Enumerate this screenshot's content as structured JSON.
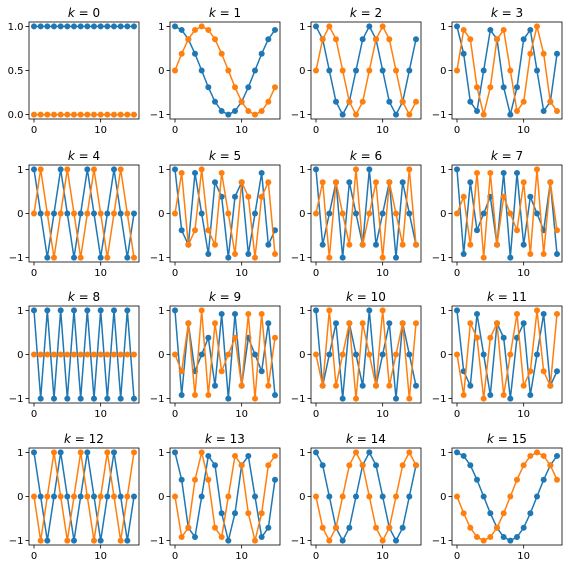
{
  "chart_data": {
    "type": "line",
    "layout": "4x4 grid of subplots",
    "n_points": 16,
    "x": [
      0,
      1,
      2,
      3,
      4,
      5,
      6,
      7,
      8,
      9,
      10,
      11,
      12,
      13,
      14,
      15
    ],
    "series_colors": [
      "#1f77b4",
      "#ff7f0e"
    ],
    "markers": "filled circles",
    "grid": false,
    "subplots": [
      {
        "title_var": "k",
        "title_value": "0",
        "xticks": [
          "0",
          "10"
        ],
        "ylim": [
          -0.05,
          1.05
        ],
        "yticks": [
          {
            "value": 0,
            "label": "0.0"
          },
          {
            "value": 0.5,
            "label": "0.5"
          },
          {
            "value": 1,
            "label": "1.0"
          }
        ],
        "series": [
          {
            "values": [
              1,
              1,
              1,
              1,
              1,
              1,
              1,
              1,
              1,
              1,
              1,
              1,
              1,
              1,
              1,
              1
            ]
          },
          {
            "values": [
              0,
              0,
              0,
              0,
              0,
              0,
              0,
              0,
              0,
              0,
              0,
              0,
              0,
              0,
              0,
              0
            ]
          }
        ]
      },
      {
        "title_var": "k",
        "title_value": "1",
        "xticks": [
          "0",
          "10"
        ],
        "ylim": [
          -1.1,
          1.1
        ],
        "yticks": [
          {
            "value": -1,
            "label": "−1"
          },
          {
            "value": 0,
            "label": "0"
          },
          {
            "value": 1,
            "label": "1"
          }
        ],
        "series": [
          {
            "values": [
              1,
              0.92,
              0.71,
              0.38,
              0,
              -0.38,
              -0.71,
              -0.92,
              -1,
              -0.92,
              -0.71,
              -0.38,
              0,
              0.38,
              0.71,
              0.92
            ]
          },
          {
            "values": [
              0,
              0.38,
              0.71,
              0.92,
              1,
              0.92,
              0.71,
              0.38,
              0,
              -0.38,
              -0.71,
              -0.92,
              -1,
              -0.92,
              -0.71,
              -0.38
            ]
          }
        ]
      },
      {
        "title_var": "k",
        "title_value": "2",
        "xticks": [
          "0",
          "10"
        ],
        "ylim": [
          -1.1,
          1.1
        ],
        "yticks": [
          {
            "value": -1,
            "label": "−1"
          },
          {
            "value": 0,
            "label": "0"
          },
          {
            "value": 1,
            "label": "1"
          }
        ],
        "series": [
          {
            "values": [
              1,
              0.71,
              0,
              -0.71,
              -1,
              -0.71,
              0,
              0.71,
              1,
              0.71,
              0,
              -0.71,
              -1,
              -0.71,
              0,
              0.71
            ]
          },
          {
            "values": [
              0,
              0.71,
              1,
              0.71,
              0,
              -0.71,
              -1,
              -0.71,
              0,
              0.71,
              1,
              0.71,
              0,
              -0.71,
              -1,
              -0.71
            ]
          }
        ]
      },
      {
        "title_var": "k",
        "title_value": "3",
        "xticks": [
          "0",
          "10"
        ],
        "ylim": [
          -1.1,
          1.1
        ],
        "yticks": [
          {
            "value": -1,
            "label": "−1"
          },
          {
            "value": 0,
            "label": "0"
          },
          {
            "value": 1,
            "label": "1"
          }
        ],
        "series": [
          {
            "values": [
              1,
              0.38,
              -0.71,
              -0.92,
              0,
              0.92,
              0.71,
              -0.38,
              -1,
              -0.38,
              0.71,
              0.92,
              0,
              -0.92,
              -0.71,
              0.38
            ]
          },
          {
            "values": [
              0,
              0.92,
              0.71,
              -0.38,
              -1,
              -0.38,
              0.71,
              0.92,
              0,
              -0.92,
              -0.71,
              0.38,
              1,
              0.38,
              -0.71,
              -0.92
            ]
          }
        ]
      },
      {
        "title_var": "k",
        "title_value": "4",
        "xticks": [
          "0",
          "10"
        ],
        "ylim": [
          -1.1,
          1.1
        ],
        "yticks": [
          {
            "value": -1,
            "label": "−1"
          },
          {
            "value": 0,
            "label": "0"
          },
          {
            "value": 1,
            "label": "1"
          }
        ],
        "series": [
          {
            "values": [
              1,
              0,
              -1,
              0,
              1,
              0,
              -1,
              0,
              1,
              0,
              -1,
              0,
              1,
              0,
              -1,
              0
            ]
          },
          {
            "values": [
              0,
              1,
              0,
              -1,
              0,
              1,
              0,
              -1,
              0,
              1,
              0,
              -1,
              0,
              1,
              0,
              -1
            ]
          }
        ]
      },
      {
        "title_var": "k",
        "title_value": "5",
        "xticks": [
          "0",
          "10"
        ],
        "ylim": [
          -1.1,
          1.1
        ],
        "yticks": [
          {
            "value": -1,
            "label": "−1"
          },
          {
            "value": 0,
            "label": "0"
          },
          {
            "value": 1,
            "label": "1"
          }
        ],
        "series": [
          {
            "values": [
              1,
              -0.38,
              -0.71,
              0.92,
              0,
              -0.92,
              0.71,
              0.38,
              -1,
              0.38,
              0.71,
              -0.92,
              0,
              0.92,
              -0.71,
              -0.38
            ]
          },
          {
            "values": [
              0,
              0.92,
              -0.71,
              -0.38,
              1,
              -0.38,
              -0.71,
              0.92,
              0,
              -0.92,
              0.71,
              0.38,
              -1,
              0.38,
              0.71,
              -0.92
            ]
          }
        ]
      },
      {
        "title_var": "k",
        "title_value": "6",
        "xticks": [
          "0",
          "10"
        ],
        "ylim": [
          -1.1,
          1.1
        ],
        "yticks": [
          {
            "value": -1,
            "label": "−1"
          },
          {
            "value": 0,
            "label": "0"
          },
          {
            "value": 1,
            "label": "1"
          }
        ],
        "series": [
          {
            "values": [
              1,
              -0.71,
              0,
              0.71,
              -1,
              0.71,
              0,
              -0.71,
              1,
              -0.71,
              0,
              0.71,
              -1,
              0.71,
              0,
              -0.71
            ]
          },
          {
            "values": [
              0,
              0.71,
              -1,
              0.71,
              0,
              -0.71,
              1,
              -0.71,
              0,
              0.71,
              -1,
              0.71,
              0,
              -0.71,
              1,
              -0.71
            ]
          }
        ]
      },
      {
        "title_var": "k",
        "title_value": "7",
        "xticks": [
          "0",
          "10"
        ],
        "ylim": [
          -1.1,
          1.1
        ],
        "yticks": [
          {
            "value": -1,
            "label": "−1"
          },
          {
            "value": 0,
            "label": "0"
          },
          {
            "value": 1,
            "label": "1"
          }
        ],
        "series": [
          {
            "values": [
              1,
              -0.92,
              0.71,
              -0.38,
              0,
              0.38,
              -0.71,
              0.92,
              -1,
              0.92,
              -0.71,
              0.38,
              0,
              -0.38,
              0.71,
              -0.92
            ]
          },
          {
            "values": [
              0,
              0.38,
              -0.71,
              0.92,
              -1,
              0.92,
              -0.71,
              0.38,
              0,
              -0.38,
              0.71,
              -0.92,
              1,
              -0.92,
              0.71,
              -0.38
            ]
          }
        ]
      },
      {
        "title_var": "k",
        "title_value": "8",
        "xticks": [
          "0",
          "10"
        ],
        "ylim": [
          -1.1,
          1.1
        ],
        "yticks": [
          {
            "value": -1,
            "label": "−1"
          },
          {
            "value": 0,
            "label": "0"
          },
          {
            "value": 1,
            "label": "1"
          }
        ],
        "series": [
          {
            "values": [
              1,
              -1,
              1,
              -1,
              1,
              -1,
              1,
              -1,
              1,
              -1,
              1,
              -1,
              1,
              -1,
              1,
              -1
            ]
          },
          {
            "values": [
              0,
              0,
              0,
              0,
              0,
              0,
              0,
              0,
              0,
              0,
              0,
              0,
              0,
              0,
              0,
              0
            ]
          }
        ]
      },
      {
        "title_var": "k",
        "title_value": "9",
        "xticks": [
          "0",
          "10"
        ],
        "ylim": [
          -1.1,
          1.1
        ],
        "yticks": [
          {
            "value": -1,
            "label": "−1"
          },
          {
            "value": 0,
            "label": "0"
          },
          {
            "value": 1,
            "label": "1"
          }
        ],
        "series": [
          {
            "values": [
              1,
              -0.92,
              0.71,
              -0.38,
              0,
              0.38,
              -0.71,
              0.92,
              -1,
              0.92,
              -0.71,
              0.38,
              0,
              -0.38,
              0.71,
              -0.92
            ]
          },
          {
            "values": [
              0,
              -0.38,
              0.71,
              -0.92,
              1,
              -0.92,
              0.71,
              -0.38,
              0,
              0.38,
              -0.71,
              0.92,
              -1,
              0.92,
              -0.71,
              0.38
            ]
          }
        ]
      },
      {
        "title_var": "k",
        "title_value": "10",
        "xticks": [
          "0",
          "10"
        ],
        "ylim": [
          -1.1,
          1.1
        ],
        "yticks": [
          {
            "value": -1,
            "label": "−1"
          },
          {
            "value": 0,
            "label": "0"
          },
          {
            "value": 1,
            "label": "1"
          }
        ],
        "series": [
          {
            "values": [
              1,
              -0.71,
              0,
              0.71,
              -1,
              0.71,
              0,
              -0.71,
              1,
              -0.71,
              0,
              0.71,
              -1,
              0.71,
              0,
              -0.71
            ]
          },
          {
            "values": [
              0,
              -0.71,
              1,
              -0.71,
              0,
              0.71,
              -1,
              0.71,
              0,
              -0.71,
              1,
              -0.71,
              0,
              0.71,
              -1,
              0.71
            ]
          }
        ]
      },
      {
        "title_var": "k",
        "title_value": "11",
        "xticks": [
          "0",
          "10"
        ],
        "ylim": [
          -1.1,
          1.1
        ],
        "yticks": [
          {
            "value": -1,
            "label": "−1"
          },
          {
            "value": 0,
            "label": "0"
          },
          {
            "value": 1,
            "label": "1"
          }
        ],
        "series": [
          {
            "values": [
              1,
              -0.38,
              -0.71,
              0.92,
              0,
              -0.92,
              0.71,
              0.38,
              -1,
              0.38,
              0.71,
              -0.92,
              0,
              0.92,
              -0.71,
              -0.38
            ]
          },
          {
            "values": [
              0,
              -0.92,
              0.71,
              0.38,
              -1,
              0.38,
              0.71,
              -0.92,
              0,
              0.92,
              -0.71,
              -0.38,
              1,
              -0.38,
              -0.71,
              0.92
            ]
          }
        ]
      },
      {
        "title_var": "k",
        "title_value": "12",
        "xticks": [
          "0",
          "10"
        ],
        "ylim": [
          -1.1,
          1.1
        ],
        "yticks": [
          {
            "value": -1,
            "label": "−1"
          },
          {
            "value": 0,
            "label": "0"
          },
          {
            "value": 1,
            "label": "1"
          }
        ],
        "series": [
          {
            "values": [
              1,
              0,
              -1,
              0,
              1,
              0,
              -1,
              0,
              1,
              0,
              -1,
              0,
              1,
              0,
              -1,
              0
            ]
          },
          {
            "values": [
              0,
              -1,
              0,
              1,
              0,
              -1,
              0,
              1,
              0,
              -1,
              0,
              1,
              0,
              -1,
              0,
              1
            ]
          }
        ]
      },
      {
        "title_var": "k",
        "title_value": "13",
        "xticks": [
          "0",
          "10"
        ],
        "ylim": [
          -1.1,
          1.1
        ],
        "yticks": [
          {
            "value": -1,
            "label": "−1"
          },
          {
            "value": 0,
            "label": "0"
          },
          {
            "value": 1,
            "label": "1"
          }
        ],
        "series": [
          {
            "values": [
              1,
              0.38,
              -0.71,
              -0.92,
              0,
              0.92,
              0.71,
              -0.38,
              -1,
              -0.38,
              0.71,
              0.92,
              0,
              -0.92,
              -0.71,
              0.38
            ]
          },
          {
            "values": [
              0,
              -0.92,
              -0.71,
              0.38,
              1,
              0.38,
              -0.71,
              -0.92,
              0,
              0.92,
              0.71,
              -0.38,
              -1,
              -0.38,
              0.71,
              0.92
            ]
          }
        ]
      },
      {
        "title_var": "k",
        "title_value": "14",
        "xticks": [
          "0",
          "10"
        ],
        "ylim": [
          -1.1,
          1.1
        ],
        "yticks": [
          {
            "value": -1,
            "label": "−1"
          },
          {
            "value": 0,
            "label": "0"
          },
          {
            "value": 1,
            "label": "1"
          }
        ],
        "series": [
          {
            "values": [
              1,
              0.71,
              0,
              -0.71,
              -1,
              -0.71,
              0,
              0.71,
              1,
              0.71,
              0,
              -0.71,
              -1,
              -0.71,
              0,
              0.71
            ]
          },
          {
            "values": [
              0,
              -0.71,
              -1,
              -0.71,
              0,
              0.71,
              1,
              0.71,
              0,
              -0.71,
              -1,
              -0.71,
              0,
              0.71,
              1,
              0.71
            ]
          }
        ]
      },
      {
        "title_var": "k",
        "title_value": "15",
        "xticks": [
          "0",
          "10"
        ],
        "ylim": [
          -1.1,
          1.1
        ],
        "yticks": [
          {
            "value": -1,
            "label": "−1"
          },
          {
            "value": 0,
            "label": "0"
          },
          {
            "value": 1,
            "label": "1"
          }
        ],
        "series": [
          {
            "values": [
              1,
              0.92,
              0.71,
              0.38,
              0,
              -0.38,
              -0.71,
              -0.92,
              -1,
              -0.92,
              -0.71,
              -0.38,
              0,
              0.38,
              0.71,
              0.92
            ]
          },
          {
            "values": [
              0,
              -0.38,
              -0.71,
              -0.92,
              -1,
              -0.92,
              -0.71,
              -0.38,
              0,
              0.38,
              0.71,
              0.92,
              1,
              0.92,
              0.71,
              0.38
            ]
          }
        ]
      }
    ]
  }
}
